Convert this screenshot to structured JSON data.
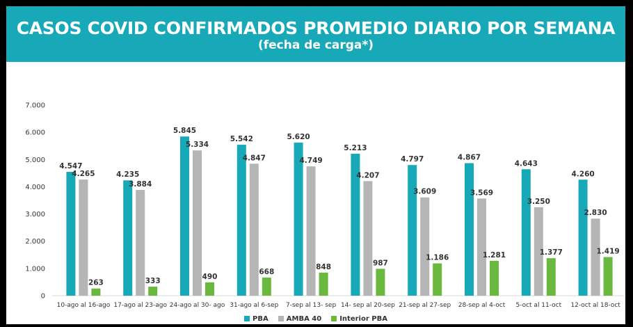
{
  "header": {
    "title": "CASOS COVID CONFIRMADOS PROMEDIO DIARIO POR SEMANA",
    "subtitle": "(fecha de carga*)"
  },
  "colors": {
    "header_bg": "#17a9b7",
    "pba": "#17a9b7",
    "amba": "#b5b5b5",
    "interior": "#6ab83e"
  },
  "chart_data": {
    "type": "bar",
    "title": "CASOS COVID CONFIRMADOS PROMEDIO DIARIO POR SEMANA",
    "subtitle": "(fecha de carga*)",
    "categories": [
      "10-ago al 16-ago",
      "17-ago al 23-ago",
      "24-ago al 30- ago",
      "31-ago al 6-sep",
      "7-sep al 13- sep",
      "14- sep al 20-sep",
      "21-sep al 27-sep",
      "28-sep al 4-oct",
      "5-oct al 11-oct",
      "12-oct al 18-oct"
    ],
    "series": [
      {
        "name": "PBA",
        "values": [
          4547,
          4235,
          5845,
          5542,
          5620,
          5213,
          4797,
          4867,
          4643,
          4260
        ],
        "labels": [
          "4.547",
          "4.235",
          "5.845",
          "5.542",
          "5.620",
          "5.213",
          "4.797",
          "4.867",
          "4.643",
          "4.260"
        ]
      },
      {
        "name": "AMBA 40",
        "values": [
          4265,
          3884,
          5334,
          4847,
          4749,
          4207,
          3609,
          3569,
          3250,
          2830
        ],
        "labels": [
          "4.265",
          "3.884",
          "5.334",
          "4.847",
          "4.749",
          "4.207",
          "3.609",
          "3.569",
          "3.250",
          "2.830"
        ]
      },
      {
        "name": "Interior PBA",
        "values": [
          263,
          333,
          490,
          668,
          848,
          987,
          1186,
          1281,
          1377,
          1419
        ],
        "labels": [
          "263",
          "333",
          "490",
          "668",
          "848",
          "987",
          "1.186",
          "1.281",
          "1.377",
          "1.419"
        ]
      }
    ],
    "yticks": [
      0,
      1000,
      2000,
      3000,
      4000,
      5000,
      6000,
      7000
    ],
    "ytick_labels": [
      "0",
      "1.000",
      "2.000",
      "3.000",
      "4.000",
      "5.000",
      "6.000",
      "7.000"
    ],
    "ylim": [
      0,
      7000
    ],
    "grid": false,
    "legend_position": "bottom-center"
  }
}
